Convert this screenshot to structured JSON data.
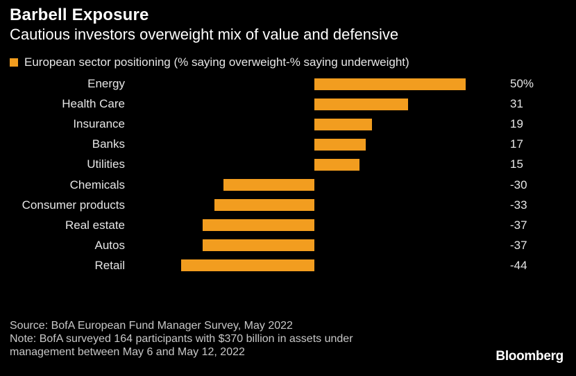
{
  "title": "Barbell Exposure",
  "subtitle": "Cautious investors overweight mix of value and defensive",
  "colors": {
    "bar": "#F29D1F",
    "background": "#000000"
  },
  "chart_data": {
    "type": "bar",
    "orientation": "horizontal",
    "categories": [
      "Energy",
      "Health Care",
      "Insurance",
      "Banks",
      "Utilities",
      "Chemicals",
      "Consumer products",
      "Real estate",
      "Autos",
      "Retail"
    ],
    "series": [
      {
        "name": "European sector positioning (% saying overweight-% saying underweight)",
        "values": [
          50,
          31,
          19,
          17,
          15,
          -30,
          -33,
          -37,
          -37,
          -44
        ]
      }
    ],
    "value_labels": [
      "50%",
      "31",
      "19",
      "17",
      "15",
      "-30",
      "-33",
      "-37",
      "-37",
      "-44"
    ],
    "xlim": [
      -44,
      50
    ],
    "grid": false,
    "legend_position": "top-left"
  },
  "footer": {
    "source": "Source: BofA European Fund Manager Survey, May 2022",
    "note_line1": "Note: BofA surveyed 164 participants with $370 billion in assets under",
    "note_line2": "management between May 6 and May 12, 2022"
  },
  "logo": "Bloomberg"
}
